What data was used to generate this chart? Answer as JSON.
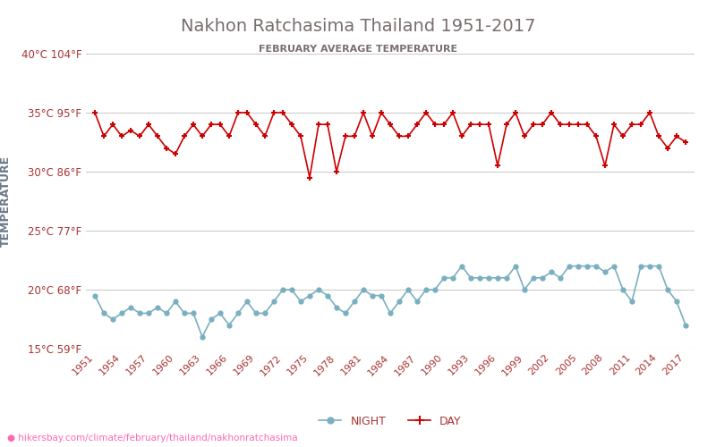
{
  "title": "Nakhon Ratchasima Thailand 1951-2017",
  "subtitle": "FEBRUARY AVERAGE TEMPERATURE",
  "ylabel": "TEMPERATURE",
  "url": "hikersbay.com/climate/february/thailand/nakhonratchasima",
  "years": [
    1951,
    1952,
    1953,
    1954,
    1955,
    1956,
    1957,
    1958,
    1959,
    1960,
    1961,
    1962,
    1963,
    1964,
    1965,
    1966,
    1967,
    1968,
    1969,
    1970,
    1971,
    1972,
    1973,
    1974,
    1975,
    1976,
    1977,
    1978,
    1979,
    1980,
    1981,
    1982,
    1983,
    1984,
    1985,
    1986,
    1987,
    1988,
    1989,
    1990,
    1991,
    1992,
    1993,
    1994,
    1995,
    1996,
    1997,
    1998,
    1999,
    2000,
    2001,
    2002,
    2003,
    2004,
    2005,
    2006,
    2007,
    2008,
    2009,
    2010,
    2011,
    2012,
    2013,
    2014,
    2015,
    2016,
    2017
  ],
  "day": [
    35,
    33,
    34,
    33,
    33.5,
    33,
    34,
    33,
    32,
    31.5,
    33,
    34,
    33,
    34,
    34,
    33,
    35,
    35,
    34,
    33,
    35,
    35,
    34,
    33,
    29.5,
    34,
    34,
    30,
    33,
    33,
    35,
    33,
    35,
    34,
    33,
    33,
    34,
    35,
    34,
    34,
    35,
    33,
    34,
    34,
    34,
    30.5,
    34,
    35,
    33,
    34,
    34,
    35,
    34,
    34,
    34,
    34,
    33,
    30.5,
    34,
    33,
    34,
    34,
    35,
    33,
    32,
    33,
    32.5
  ],
  "night": [
    19.5,
    18,
    17.5,
    18,
    18.5,
    18,
    18,
    18.5,
    18,
    19,
    18,
    18,
    16,
    17.5,
    18,
    17,
    18,
    19,
    18,
    18,
    19,
    20,
    20,
    19,
    19.5,
    20,
    19.5,
    18.5,
    18,
    19,
    20,
    19.5,
    19.5,
    18,
    19,
    20,
    19,
    20,
    20,
    21,
    21,
    22,
    21,
    21,
    21,
    21,
    21,
    22,
    20,
    21,
    21,
    21.5,
    21,
    22,
    22,
    22,
    22,
    21.5,
    22,
    20,
    19,
    22,
    22,
    22,
    20,
    19,
    17
  ],
  "day_color": "#cc0000",
  "night_color": "#7aafc0",
  "grid_color": "#cccccc",
  "title_color": "#7a6e6e",
  "subtitle_color": "#7a6e6e",
  "ylabel_color": "#6a7a8a",
  "tick_color": "#aa3333",
  "background_color": "#ffffff",
  "ylim_min": 15,
  "ylim_max": 40,
  "yticks_c": [
    15,
    20,
    25,
    30,
    35,
    40
  ],
  "yticks_f": [
    59,
    68,
    77,
    86,
    95,
    104
  ],
  "xtick_years": [
    1951,
    1954,
    1957,
    1960,
    1963,
    1966,
    1969,
    1972,
    1975,
    1978,
    1981,
    1984,
    1987,
    1990,
    1993,
    1996,
    1999,
    2002,
    2005,
    2008,
    2011,
    2014,
    2017
  ]
}
